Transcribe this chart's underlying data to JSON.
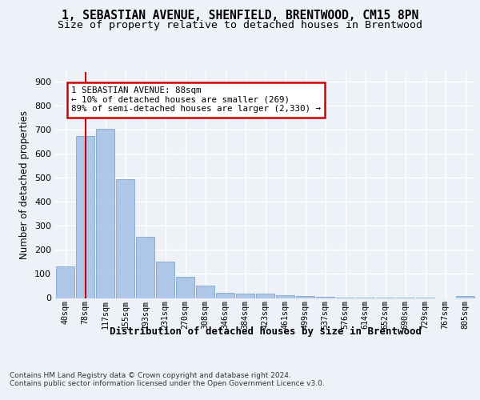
{
  "title": "1, SEBASTIAN AVENUE, SHENFIELD, BRENTWOOD, CM15 8PN",
  "subtitle": "Size of property relative to detached houses in Brentwood",
  "xlabel": "Distribution of detached houses by size in Brentwood",
  "ylabel": "Number of detached properties",
  "bar_labels": [
    "40sqm",
    "78sqm",
    "117sqm",
    "155sqm",
    "193sqm",
    "231sqm",
    "270sqm",
    "308sqm",
    "346sqm",
    "384sqm",
    "423sqm",
    "461sqm",
    "499sqm",
    "537sqm",
    "576sqm",
    "614sqm",
    "652sqm",
    "690sqm",
    "729sqm",
    "767sqm",
    "805sqm"
  ],
  "bar_values": [
    130,
    675,
    705,
    495,
    253,
    152,
    88,
    52,
    22,
    18,
    18,
    10,
    7,
    4,
    2,
    3,
    1,
    1,
    2,
    0,
    7
  ],
  "bar_color": "#aec6e8",
  "bar_edgecolor": "#7fa8c9",
  "vline_x": 1.0,
  "vline_color": "#cc0000",
  "annotation_text": "1 SEBASTIAN AVENUE: 88sqm\n← 10% of detached houses are smaller (269)\n89% of semi-detached houses are larger (2,330) →",
  "annotation_box_color": "#cc0000",
  "annotation_text_color": "#000000",
  "ylim": [
    0,
    940
  ],
  "yticks": [
    0,
    100,
    200,
    300,
    400,
    500,
    600,
    700,
    800,
    900
  ],
  "footer_text": "Contains HM Land Registry data © Crown copyright and database right 2024.\nContains public sector information licensed under the Open Government Licence v3.0.",
  "bg_color": "#eef2f8",
  "plot_bg_color": "#eef2f8",
  "grid_color": "#ffffff",
  "title_fontsize": 10.5,
  "subtitle_fontsize": 9.5,
  "xlabel_fontsize": 9,
  "ylabel_fontsize": 8.5
}
